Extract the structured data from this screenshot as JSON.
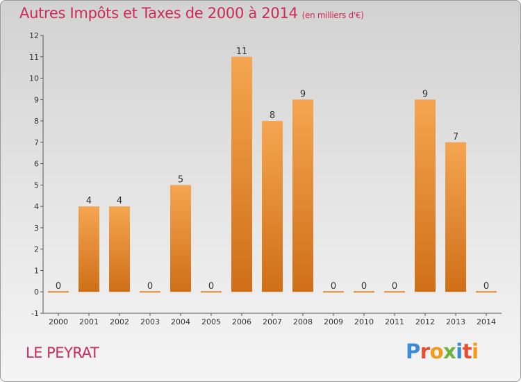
{
  "title": "Autres Impôts et Taxes de 2000 à 2014",
  "unit": "(en milliers d'€)",
  "commune": "LE PEYRAT",
  "logo": [
    "P",
    "r",
    "o",
    "x",
    "i",
    "t",
    "i"
  ],
  "colors": {
    "title": "#cc2a5a",
    "bar_light": "#f5a550",
    "bar_dark": "#cf6f18",
    "axis": "#555555"
  },
  "chart_data": {
    "type": "bar",
    "categories": [
      "2000",
      "2001",
      "2002",
      "2003",
      "2004",
      "2005",
      "2006",
      "2007",
      "2008",
      "2009",
      "2010",
      "2011",
      "2012",
      "2013",
      "2014"
    ],
    "values": [
      0,
      4,
      4,
      0,
      5,
      0,
      11,
      8,
      9,
      0,
      0,
      0,
      9,
      7,
      0
    ],
    "data_labels": [
      "0",
      "4",
      "4",
      "0",
      "5",
      "0",
      "11",
      "8",
      "9",
      "0",
      "0",
      "0",
      "9",
      "7",
      "0"
    ],
    "yticks": [
      "-1",
      "0",
      "1",
      "2",
      "3",
      "4",
      "5",
      "6",
      "7",
      "8",
      "9",
      "10",
      "11",
      "12"
    ],
    "ylim": [
      -1,
      12
    ],
    "grid": false
  }
}
